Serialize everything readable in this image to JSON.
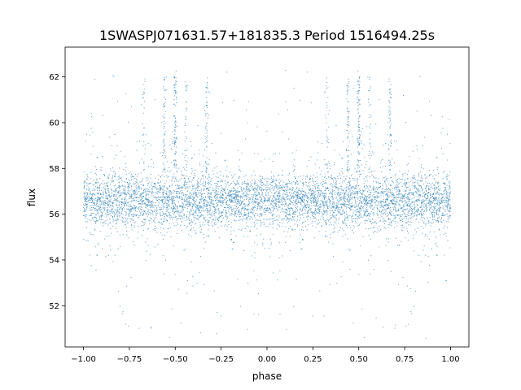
{
  "chart_data": {
    "type": "scatter",
    "title": "1SWASPJ071631.57+181835.3 Period 1516494.25s",
    "xlabel": "phase",
    "ylabel": "flux",
    "xlim": [
      -1.1,
      1.1
    ],
    "ylim": [
      50.2,
      63.3
    ],
    "xticks": [
      -1.0,
      -0.75,
      -0.5,
      -0.25,
      0.0,
      0.25,
      0.5,
      0.75,
      1.0
    ],
    "xtick_labels": [
      "−1.00",
      "−0.75",
      "−0.50",
      "−0.25",
      "0.00",
      "0.25",
      "0.50",
      "0.75",
      "1.00"
    ],
    "yticks": [
      52,
      54,
      56,
      58,
      60,
      62
    ],
    "ytick_labels": [
      "52",
      "54",
      "56",
      "58",
      "60",
      "62"
    ],
    "grid": false,
    "point_color": "#1f77b4",
    "series": [
      {
        "x_range": [
          -1.0,
          1.0
        ],
        "y_center": 56.6,
        "y_band": [
          55.3,
          58.0
        ],
        "y_extreme_range": [
          50.5,
          62.3
        ],
        "dense_columns_phase": [
          -0.56,
          -0.5,
          -0.33,
          0.44,
          0.5,
          0.67
        ],
        "symmetric_about_phase": 0.0
      }
    ]
  }
}
